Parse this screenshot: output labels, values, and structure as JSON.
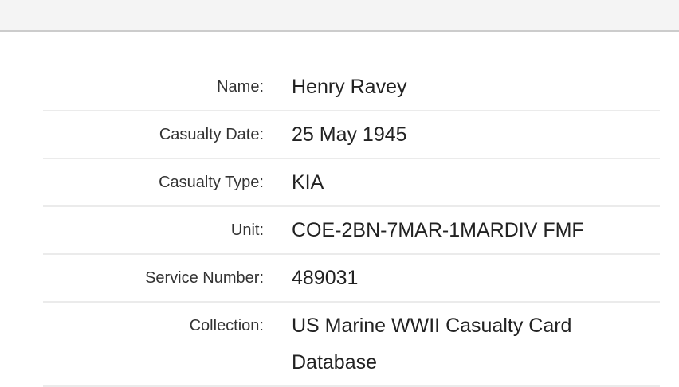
{
  "details": [
    {
      "label": "Name:",
      "value": "Henry Ravey"
    },
    {
      "label": "Casualty Date:",
      "value": "25 May 1945"
    },
    {
      "label": "Casualty Type:",
      "value": "KIA"
    },
    {
      "label": "Unit:",
      "value": "COE-2BN-7MAR-1MARDIV FMF"
    },
    {
      "label": "Service Number:",
      "value": "489031"
    },
    {
      "label": "Collection:",
      "value": "US Marine WWII Casualty Card Database"
    }
  ]
}
